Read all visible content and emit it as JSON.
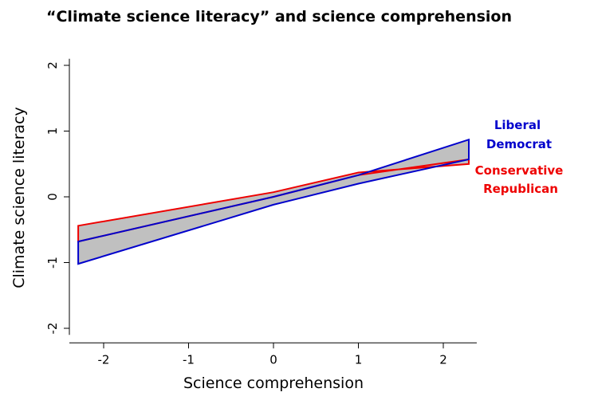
{
  "chart_data": {
    "type": "area",
    "title": "“Climate science literacy” and science comprehension",
    "xlabel": "Science comprehension",
    "ylabel": "Climate science literacy",
    "xlim": [
      -2.3,
      2.3
    ],
    "ylim": [
      -2.1,
      2.1
    ],
    "xticks": [
      -2,
      -1,
      0,
      1,
      2
    ],
    "yticks": [
      -2,
      -1,
      0,
      1,
      2
    ],
    "x_tick_labels": [
      "-2",
      "-1",
      "0",
      "1",
      "2"
    ],
    "y_tick_labels": [
      "-2",
      "-1",
      "0",
      "1",
      "2"
    ],
    "grid": false,
    "series": [
      {
        "name": "Liberal Democrat",
        "color": "#0000cc",
        "upper": [
          [
            -2.3,
            -0.68
          ],
          [
            0,
            0.0
          ],
          [
            1.0,
            0.33
          ],
          [
            2.3,
            0.87
          ]
        ],
        "lower": [
          [
            -2.3,
            -1.02
          ],
          [
            0,
            -0.12
          ],
          [
            1.0,
            0.2
          ],
          [
            2.3,
            0.57
          ]
        ]
      },
      {
        "name": "Conservative Republican",
        "color": "#ee0000",
        "upper": [
          [
            -2.3,
            -0.44
          ],
          [
            0,
            0.07
          ],
          [
            1.0,
            0.37
          ],
          [
            2.3,
            0.5
          ]
        ],
        "lower": [
          [
            -2.3,
            -0.68
          ],
          [
            0,
            0.0
          ],
          [
            1.0,
            0.33
          ],
          [
            2.3,
            0.57
          ]
        ]
      }
    ],
    "labels": {
      "liberal": [
        "Liberal",
        "Democrat"
      ],
      "conservative": [
        "Conservative",
        "Republican"
      ]
    },
    "band_fill": "#c0c0c0"
  }
}
